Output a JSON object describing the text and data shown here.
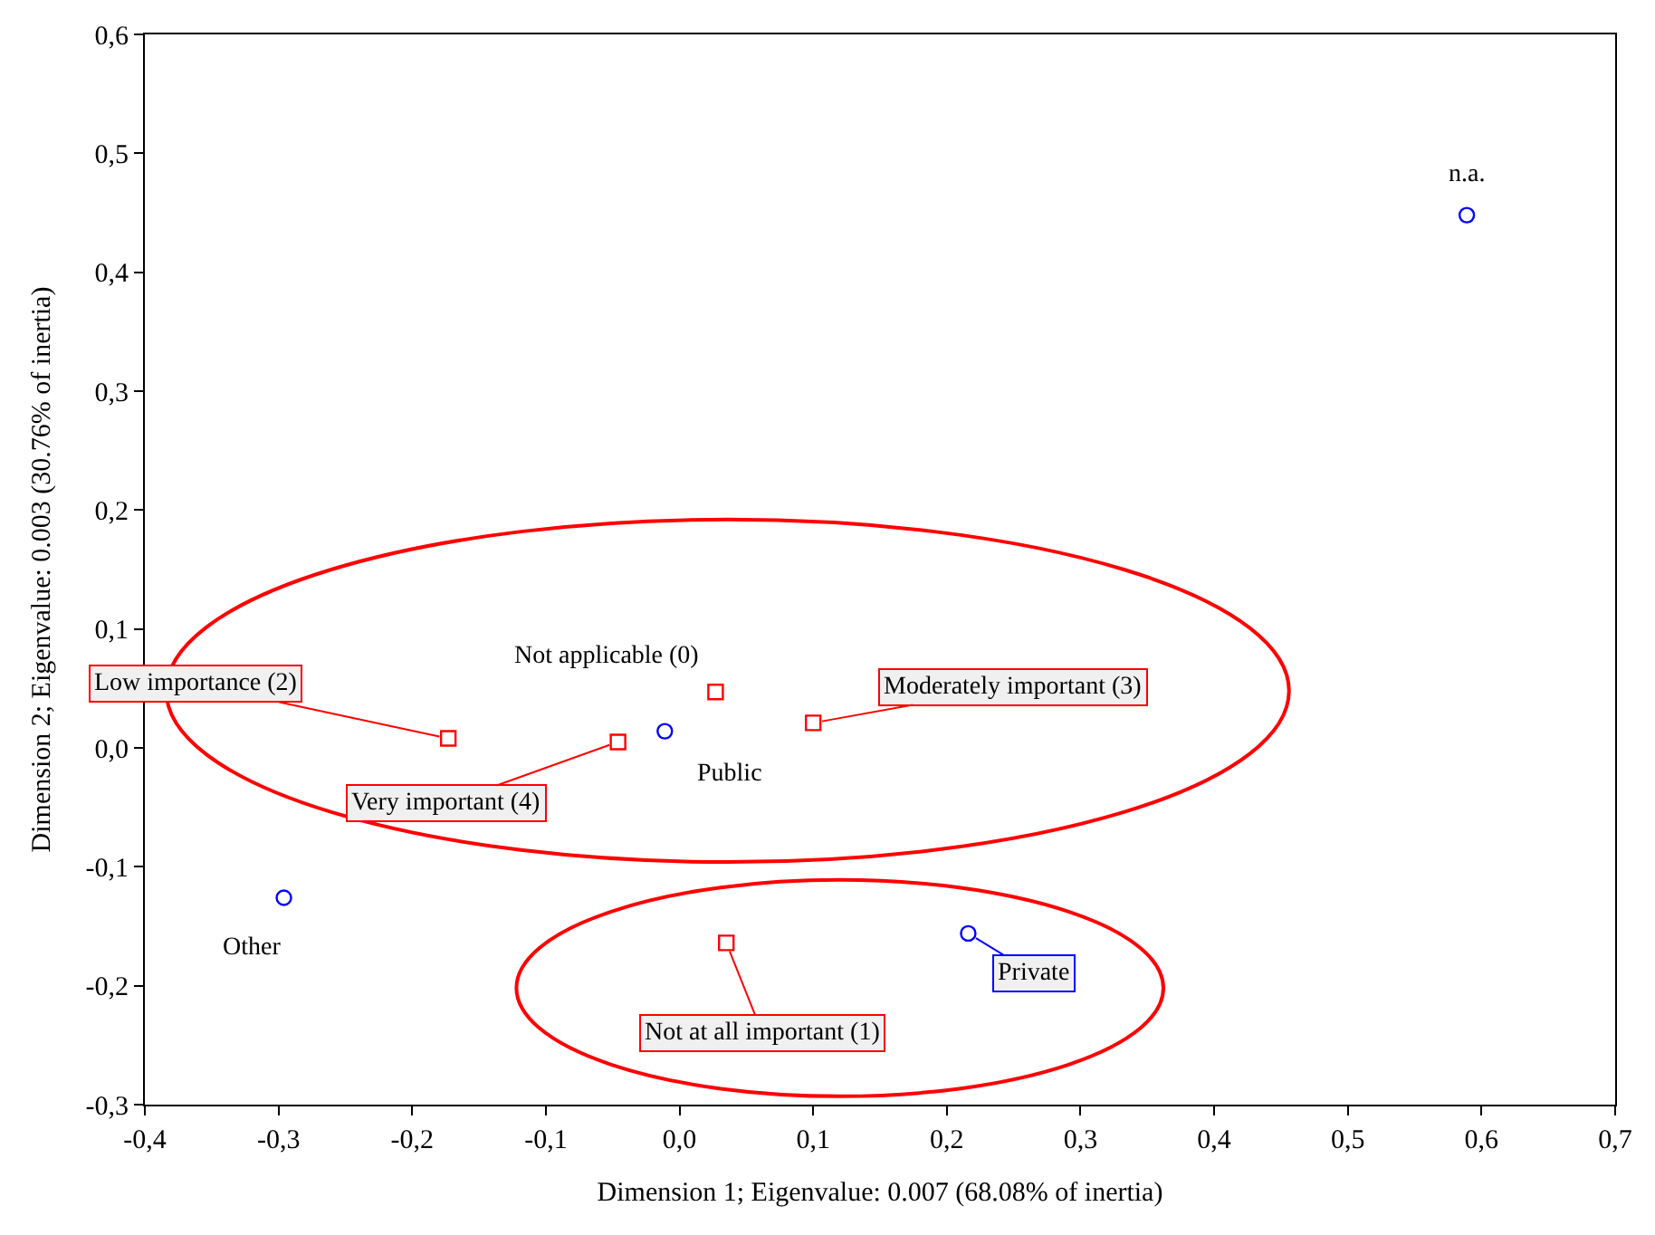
{
  "chart_data": {
    "type": "scatter",
    "xlabel": "Dimension 1; Eigenvalue: 0.007 (68.08% of inertia)",
    "ylabel": "Dimension 2; Eigenvalue: 0.003 (30.76% of inertia)",
    "series": [
      {
        "color": "#0000ff",
        "marker": "circle",
        "x": [
          0.589,
          -0.011,
          -0.296,
          0.216
        ],
        "values": [
          0.448,
          0.014,
          -0.126,
          -0.156
        ]
      },
      {
        "color": "#ff0000",
        "marker": "square",
        "x": [
          -0.173,
          -0.046,
          0.027,
          0.1,
          0.035
        ],
        "values": [
          0.008,
          0.005,
          0.047,
          0.021,
          -0.164
        ]
      }
    ],
    "annotations": [
      {
        "text": "n.a.",
        "x": 0.589,
        "y": 0.448
      },
      {
        "text": "Public",
        "x": -0.011,
        "y": 0.014
      },
      {
        "text": "Other",
        "x": -0.296,
        "y": -0.126
      },
      {
        "text": "Private",
        "x": 0.216,
        "y": -0.156
      },
      {
        "text": "Low importance (2)",
        "x": -0.173,
        "y": 0.008
      },
      {
        "text": "Very important (4)",
        "x": -0.046,
        "y": 0.005
      },
      {
        "text": "Not applicable (0)",
        "x": 0.027,
        "y": 0.047
      },
      {
        "text": "Moderately important (3)",
        "x": 0.1,
        "y": 0.021
      },
      {
        "text": "Not at all important (1)",
        "x": 0.035,
        "y": -0.164
      }
    ],
    "xlim": [
      -0.4,
      0.7
    ],
    "xticks": [
      {
        "value": -0.4,
        "label": "-0,4"
      },
      {
        "value": -0.3,
        "label": "-0,3"
      },
      {
        "value": -0.2,
        "label": "-0,2"
      },
      {
        "value": -0.1,
        "label": "-0,1"
      },
      {
        "value": 0,
        "label": "0,0"
      },
      {
        "value": 0.1,
        "label": "0,1"
      },
      {
        "value": 0.2,
        "label": "0,2"
      },
      {
        "value": 0.3,
        "label": "0,3"
      },
      {
        "value": 0.4,
        "label": "0,4"
      },
      {
        "value": 0.5,
        "label": "0,5"
      },
      {
        "value": 0.6,
        "label": "0,6"
      },
      {
        "value": 0.7,
        "label": "0,7"
      }
    ],
    "ylim": [
      -0.3,
      0.6
    ],
    "yticks": [
      {
        "value": -0.3,
        "label": "-0,3"
      },
      {
        "value": -0.2,
        "label": "-0,2"
      },
      {
        "value": -0.1,
        "label": "-0,1"
      },
      {
        "value": 0,
        "label": "0,0"
      },
      {
        "value": 0.1,
        "label": "0,1"
      },
      {
        "value": 0.2,
        "label": "0,2"
      },
      {
        "value": 0.3,
        "label": "0,3"
      },
      {
        "value": 0.4,
        "label": "0,4"
      },
      {
        "value": 0.5,
        "label": "0,5"
      },
      {
        "value": 0.6,
        "label": "0,6"
      }
    ],
    "grid": false
  }
}
